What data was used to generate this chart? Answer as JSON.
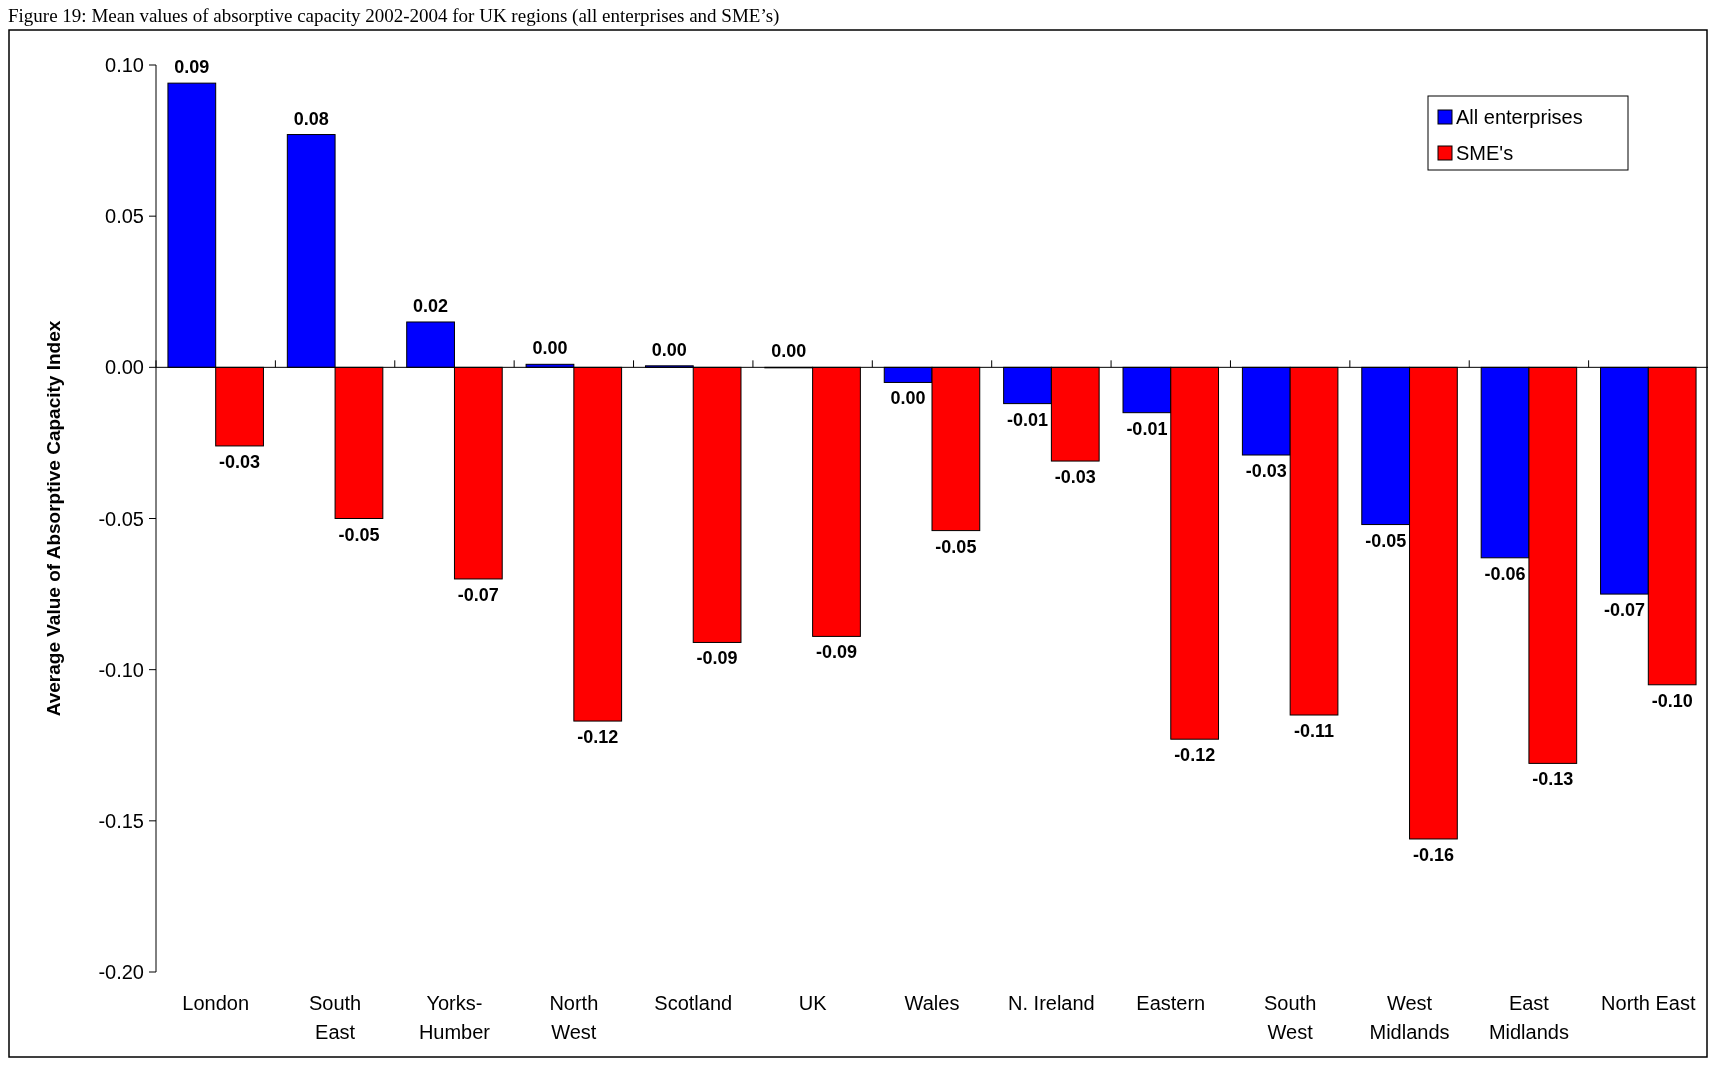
{
  "chart_data": {
    "type": "bar",
    "title": "Figure 19: Mean values of absorptive capacity 2002-2004 for UK regions (all enterprises and SME’s)",
    "ylabel": "Average Value of Absorptive Capacity Index",
    "categories": [
      "London",
      "South\nEast",
      "Yorks-\nHumber",
      "North\nWest",
      "Scotland",
      "UK",
      "Wales",
      "N. Ireland",
      "Eastern",
      "South\nWest",
      "West\nMidlands",
      "East\nMidlands",
      "North East"
    ],
    "series": [
      {
        "name": "All enterprises",
        "color": "#0000ff",
        "values": [
          0.094,
          0.077,
          0.015,
          0.001,
          0.0005,
          0,
          -0.005,
          -0.012,
          -0.015,
          -0.029,
          -0.052,
          -0.063,
          -0.075
        ],
        "value_labels": [
          "0.09",
          "0.08",
          "0.02",
          "0.00",
          "0.00",
          "0.00",
          "0.00",
          "-0.01",
          "-0.01",
          "-0.03",
          "-0.05",
          "-0.06",
          "-0.07"
        ]
      },
      {
        "name": "SME's",
        "color": "#ff0000",
        "values": [
          -0.026,
          -0.05,
          -0.07,
          -0.117,
          -0.091,
          -0.089,
          -0.054,
          -0.031,
          -0.123,
          -0.115,
          -0.156,
          -0.131,
          -0.105
        ],
        "value_labels": [
          "-0.03",
          "-0.05",
          "-0.07",
          "-0.12",
          "-0.09",
          "-0.09",
          "-0.05",
          "-0.03",
          "-0.12",
          "-0.11",
          "-0.16",
          "-0.13",
          "-0.10"
        ]
      }
    ],
    "ylim": [
      -0.2,
      0.1
    ],
    "yticks": [
      {
        "value": -0.2,
        "label": "-0.20"
      },
      {
        "value": -0.15,
        "label": "-0.15"
      },
      {
        "value": -0.1,
        "label": "-0.10"
      },
      {
        "value": -0.05,
        "label": "-0.05"
      },
      {
        "value": 0,
        "label": "0.00"
      },
      {
        "value": 0.05,
        "label": "0.05"
      },
      {
        "value": 0.1,
        "label": "0.10"
      }
    ],
    "legend": "top right"
  }
}
